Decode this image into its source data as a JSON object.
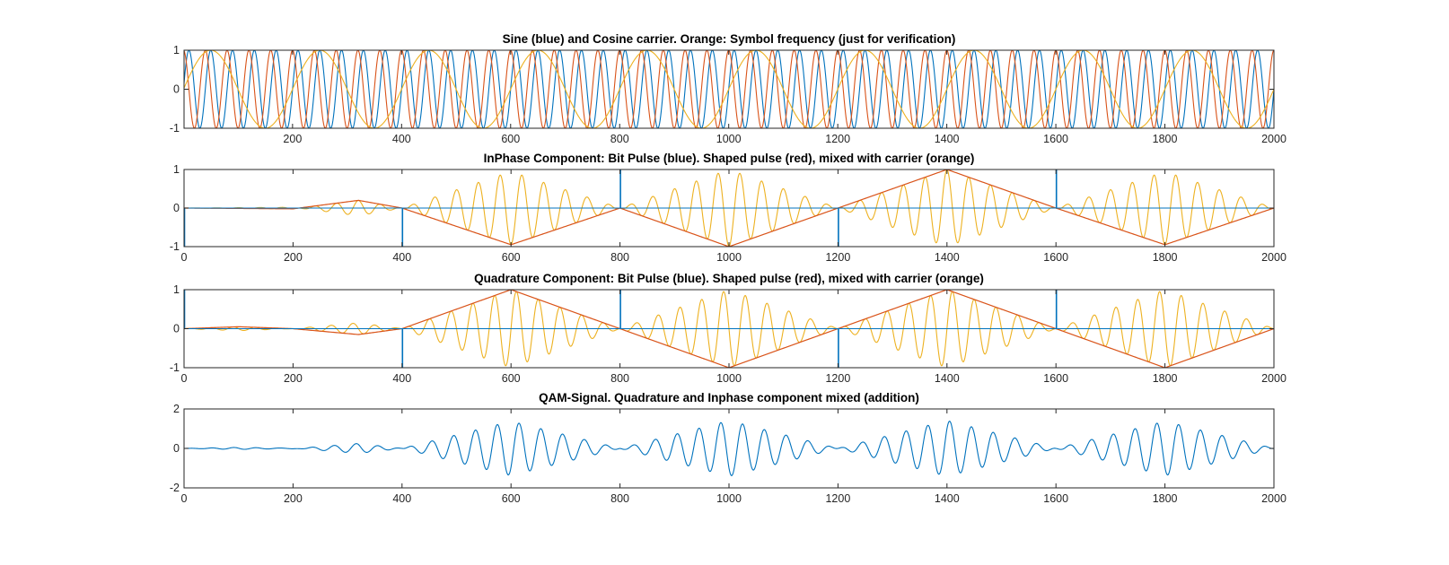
{
  "chart_data": [
    {
      "type": "line",
      "title": "Sine (blue) and Cosine carrier. Orange: Symbol frequency (just for verification)",
      "xlim": [
        1,
        2000
      ],
      "ylim": [
        -1,
        1
      ],
      "xticks": [
        200,
        400,
        600,
        800,
        1000,
        1200,
        1400,
        1600,
        1800,
        2000
      ],
      "yticks": [
        -1,
        0,
        1
      ],
      "xtick_labels": [
        "200",
        "400",
        "600",
        "800",
        "1000",
        "1200",
        "1400",
        "1600",
        "1800",
        "2000"
      ],
      "ytick_labels": [
        "-1",
        "0",
        "1"
      ],
      "grid": false,
      "series": [
        {
          "kind": "sine",
          "color": "#0072BD",
          "amplitude": 1,
          "period": 40,
          "phase_deg": 0
        },
        {
          "kind": "cosine",
          "color": "#D95319",
          "amplitude": 1,
          "period": 40,
          "phase_deg": 90
        },
        {
          "kind": "sine",
          "color": "#EDB120",
          "amplitude": 1,
          "period": 200,
          "phase_deg": 0
        }
      ]
    },
    {
      "type": "line",
      "title": "InPhase Component: Bit Pulse (blue). Shaped pulse (red), mixed with carrier (orange)",
      "xlim": [
        0,
        2000
      ],
      "ylim": [
        -1,
        1
      ],
      "xticks": [
        0,
        200,
        400,
        600,
        800,
        1000,
        1200,
        1400,
        1600,
        1800,
        2000
      ],
      "yticks": [
        -1,
        0,
        1
      ],
      "xtick_labels": [
        "0",
        "200",
        "400",
        "600",
        "800",
        "1000",
        "1200",
        "1400",
        "1600",
        "1800",
        "2000"
      ],
      "ytick_labels": [
        "-1",
        "0",
        "1"
      ],
      "grid": false,
      "carrier_period": 40,
      "bit_pulses": {
        "color": "#0072BD",
        "x": [
          0,
          400,
          800,
          1200,
          1600
        ],
        "values": [
          -1,
          -1,
          1,
          -1,
          1
        ]
      },
      "shaped_pulse": {
        "color": "#D95319",
        "x": [
          0,
          100,
          200,
          320,
          400,
          600,
          800,
          1000,
          1200,
          1400,
          1600,
          1800,
          2000
        ],
        "y": [
          0,
          -0.01,
          -0.02,
          0.2,
          0,
          -0.95,
          0,
          -1,
          0,
          1,
          0,
          -0.95,
          0
        ]
      },
      "mixed": {
        "color": "#EDB120"
      }
    },
    {
      "type": "line",
      "title": "Quadrature Component: Bit Pulse (blue). Shaped pulse (red), mixed with carrier (orange)",
      "xlim": [
        0,
        2000
      ],
      "ylim": [
        -1,
        1
      ],
      "xticks": [
        0,
        200,
        400,
        600,
        800,
        1000,
        1200,
        1400,
        1600,
        1800,
        2000
      ],
      "yticks": [
        -1,
        0,
        1
      ],
      "xtick_labels": [
        "0",
        "200",
        "400",
        "600",
        "800",
        "1000",
        "1200",
        "1400",
        "1600",
        "1800",
        "2000"
      ],
      "ytick_labels": [
        "-1",
        "0",
        "1"
      ],
      "grid": false,
      "carrier_period": 40,
      "bit_pulses": {
        "color": "#0072BD",
        "x": [
          0,
          400,
          800,
          1200,
          1600
        ],
        "values": [
          1,
          -1,
          1,
          -1,
          1
        ]
      },
      "shaped_pulse": {
        "color": "#D95319",
        "x": [
          0,
          100,
          200,
          320,
          400,
          600,
          800,
          1000,
          1200,
          1400,
          1600,
          1800,
          2000
        ],
        "y": [
          0,
          0.05,
          0,
          -0.15,
          0,
          1,
          0,
          -1,
          0,
          1,
          0,
          -1,
          0
        ]
      },
      "mixed": {
        "color": "#EDB120"
      }
    },
    {
      "type": "line",
      "title": "QAM-Signal. Quadrature and Inphase component mixed (addition)",
      "xlim": [
        0,
        2000
      ],
      "ylim": [
        -2,
        2
      ],
      "xticks": [
        0,
        200,
        400,
        600,
        800,
        1000,
        1200,
        1400,
        1600,
        1800,
        2000
      ],
      "yticks": [
        -2,
        0,
        2
      ],
      "xtick_labels": [
        "0",
        "200",
        "400",
        "600",
        "800",
        "1000",
        "1200",
        "1400",
        "1600",
        "1800",
        "2000"
      ],
      "ytick_labels": [
        "-2",
        "0",
        "2"
      ],
      "grid": false,
      "series": [
        {
          "color": "#0072BD",
          "description_of_values": "sum of inphase and quadrature mixed signals"
        }
      ]
    }
  ]
}
